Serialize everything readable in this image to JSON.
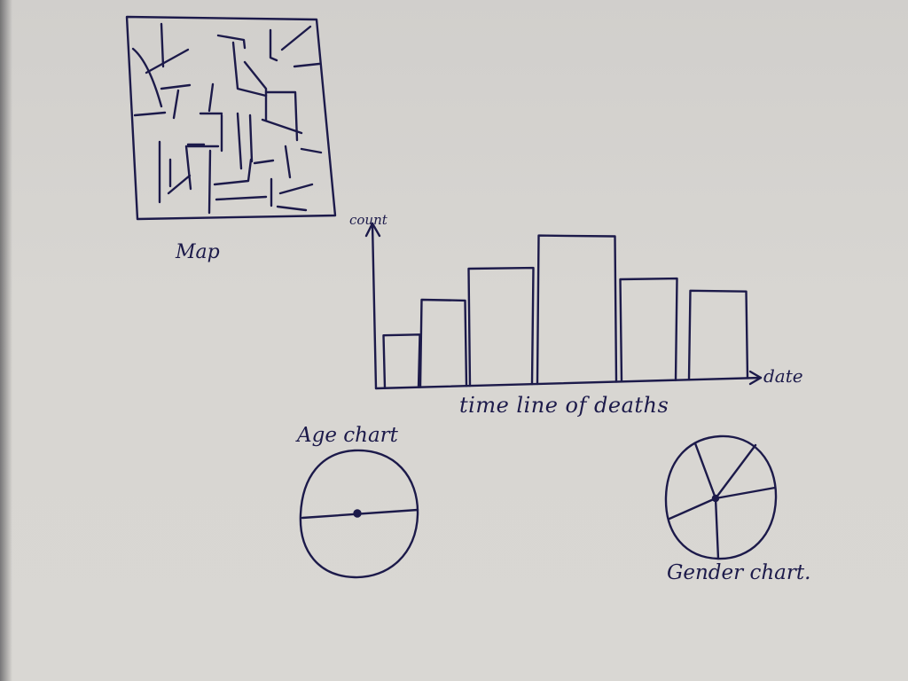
{
  "colors": {
    "paper": "#d8d6d2",
    "ink": "#1c1a4a"
  },
  "labels": {
    "map": "Map",
    "timeline": "time line  of deaths",
    "age_chart": "Age chart",
    "gender_chart": "Gender chart.",
    "y_axis": "count",
    "x_axis": "date"
  },
  "chart_data": [
    {
      "type": "bar",
      "title": "time line  of deaths",
      "xlabel": "date",
      "ylabel": "count",
      "values": [
        3.2,
        5.3,
        7.1,
        9.0,
        6.2,
        5.4
      ],
      "ylim": [
        0,
        10
      ],
      "grid": false,
      "legend": "none"
    },
    {
      "type": "pie",
      "title": "Age chart",
      "values": [
        50,
        50
      ]
    },
    {
      "type": "pie",
      "title": "Gender chart.",
      "values": [
        17,
        20,
        26,
        26,
        11
      ]
    }
  ]
}
